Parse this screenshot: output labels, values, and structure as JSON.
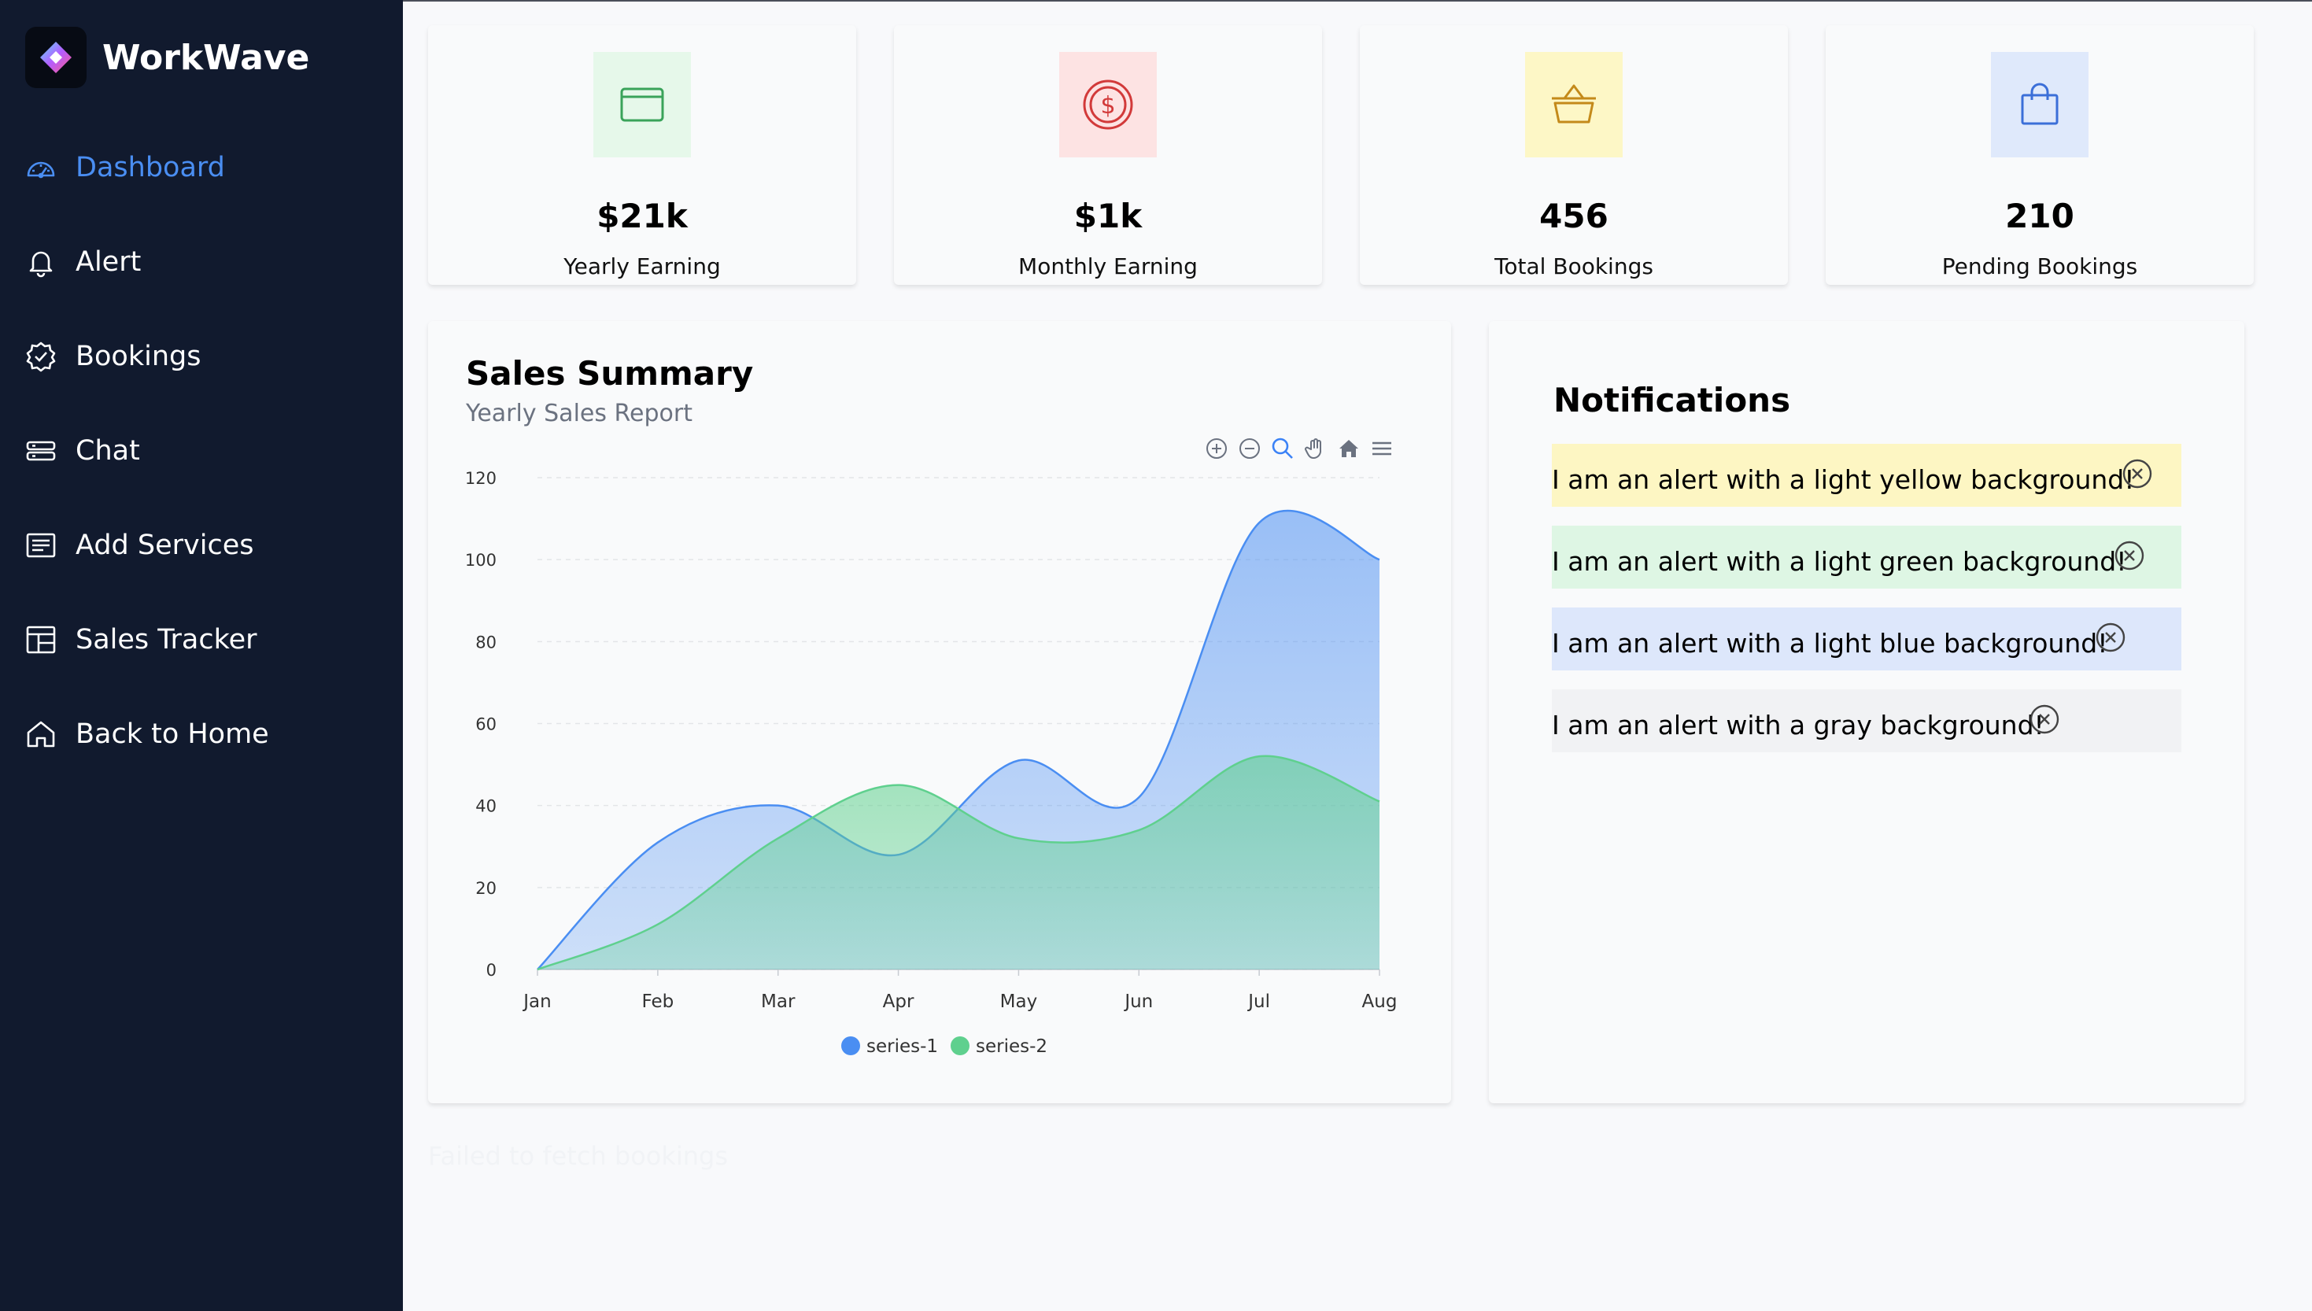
{
  "app": {
    "name": "WorkWave"
  },
  "sidebar": {
    "items": [
      {
        "label": "Dashboard",
        "icon": "dashboard-gauge-icon",
        "active": true
      },
      {
        "label": "Alert",
        "icon": "bell-icon"
      },
      {
        "label": "Bookings",
        "icon": "badge-check-icon"
      },
      {
        "label": "Chat",
        "icon": "server-stack-icon"
      },
      {
        "label": "Add Services",
        "icon": "list-document-icon"
      },
      {
        "label": "Sales Tracker",
        "icon": "layout-grid-icon"
      },
      {
        "label": "Back to Home",
        "icon": "home-icon"
      }
    ]
  },
  "stats": [
    {
      "value": "$21k",
      "label": "Yearly Earning",
      "icon": "wallet-icon",
      "bg": "#e6f8ea",
      "color": "#3aa35a"
    },
    {
      "value": "$1k",
      "label": "Monthly Earning",
      "icon": "dollar-coin-icon",
      "bg": "#fde3e3",
      "color": "#d23a3a"
    },
    {
      "value": "456",
      "label": "Total Bookings",
      "icon": "basket-icon",
      "bg": "#fdf7c6",
      "color": "#c48a1a"
    },
    {
      "value": "210",
      "label": "Pending Bookings",
      "icon": "shopping-bag-icon",
      "bg": "#dfe9fb",
      "color": "#3b6fd8"
    }
  ],
  "sales": {
    "title": "Sales Summary",
    "subtitle": "Yearly Sales Report",
    "toolbar": [
      "zoom-in-icon",
      "zoom-out-icon",
      "magnifier-icon",
      "pan-hand-icon",
      "reset-home-icon",
      "menu-icon"
    ]
  },
  "chart_data": {
    "type": "area",
    "x": [
      "Jan",
      "Feb",
      "Mar",
      "Apr",
      "May",
      "Jun",
      "Jul",
      "Aug"
    ],
    "ylim": [
      0,
      120
    ],
    "yticks": [
      0,
      20,
      40,
      60,
      80,
      100,
      120
    ],
    "grid": true,
    "legend_position": "bottom",
    "series": [
      {
        "name": "series-1",
        "values": [
          0,
          31,
          40,
          28,
          51,
          42,
          109,
          100
        ],
        "color": "#4a8ef2"
      },
      {
        "name": "series-2",
        "values": [
          0,
          11,
          32,
          45,
          32,
          34,
          52,
          41
        ],
        "color": "#5fd08e"
      }
    ]
  },
  "notifications": {
    "title": "Notifications",
    "alerts": [
      {
        "text": "I am an alert with a light yellow background!",
        "bg": "#fdf6c3"
      },
      {
        "text": "I am an alert with a light green background!",
        "bg": "#def6e4"
      },
      {
        "text": "I am an alert with a light blue background!",
        "bg": "#dde7fb"
      },
      {
        "text": "I am an alert with a gray background!",
        "bg": "#f1f2f4"
      }
    ]
  },
  "error_text": "Failed to fetch bookings"
}
